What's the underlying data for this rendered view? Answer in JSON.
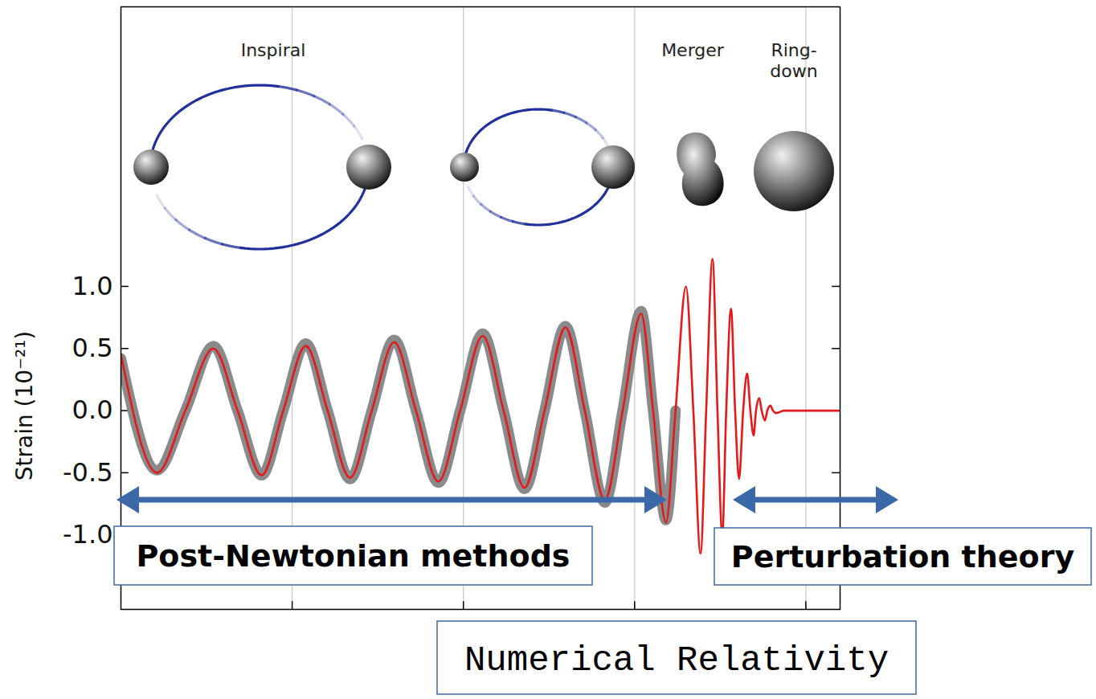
{
  "chart_data": {
    "type": "line",
    "ylabel": "Strain (10⁻²¹)",
    "x": [
      0,
      0.211,
      0.376,
      0.54,
      0.681,
      0.822,
      0.948,
      1.08,
      1.207,
      1.338,
      1.465,
      1.596,
      1.723,
      1.854,
      1.981,
      2.113,
      2.235,
      2.357,
      2.474,
      2.596,
      2.709,
      2.826,
      2.93,
      3.038,
      3.108,
      3.183,
      3.239,
      3.3,
      3.343,
      3.385,
      3.418,
      3.455,
      3.484,
      3.512,
      3.535,
      3.563,
      3.587,
      3.61,
      3.634,
      3.657,
      3.676,
      3.695,
      3.709,
      3.728,
      3.742,
      3.761,
      3.775,
      3.793,
      3.808,
      3.826,
      3.873,
      4.19
    ],
    "series": [
      {
        "color": "#8a8a8a",
        "values": [
          0.42,
          -0.48,
          0,
          0.52,
          0,
          -0.52,
          0,
          0.54,
          0,
          -0.55,
          0,
          0.57,
          0,
          -0.58,
          0,
          0.62,
          0,
          -0.63,
          0,
          0.68,
          0,
          -0.74,
          0,
          0.8,
          0,
          -0.88,
          0,
          null,
          null,
          null,
          null,
          null,
          null,
          null,
          null,
          null,
          null,
          null,
          null,
          null,
          null,
          null,
          null,
          null,
          null,
          null,
          null,
          null,
          null,
          null,
          null,
          null
        ]
      },
      {
        "color": "#e3191c",
        "values": [
          0.45,
          -0.5,
          0,
          0.5,
          0,
          -0.52,
          0,
          0.52,
          0,
          -0.54,
          0,
          0.55,
          0,
          -0.57,
          0,
          0.6,
          0,
          -0.62,
          0,
          0.67,
          0,
          -0.72,
          0,
          0.78,
          0,
          -0.9,
          0,
          1.0,
          0,
          -1.15,
          0,
          1.22,
          0,
          -1.0,
          0,
          0.82,
          0,
          -0.55,
          0,
          0.3,
          0,
          -0.2,
          0,
          0.1,
          0,
          -0.08,
          0,
          0.04,
          0,
          -0.02,
          0,
          0
        ]
      }
    ],
    "xlim": [
      0,
      4.2
    ],
    "xticks": [
      1,
      2,
      3,
      4
    ],
    "ylim": [
      -1.6,
      3.25
    ],
    "yticks": [
      {
        "value": 1,
        "label": "1.0"
      },
      0.5,
      {
        "value": 0,
        "label": "0.0"
      },
      -0.5,
      {
        "value": -1,
        "label": "-1.0"
      }
    ],
    "grid": "x",
    "tick_labels": "y",
    "labels": [
      "Inspiral",
      "Merger",
      "Ring-down"
    ],
    "annotations": [
      "Post-Newtonian methods",
      "Perturbation theory",
      "Numerical Relativity"
    ]
  }
}
